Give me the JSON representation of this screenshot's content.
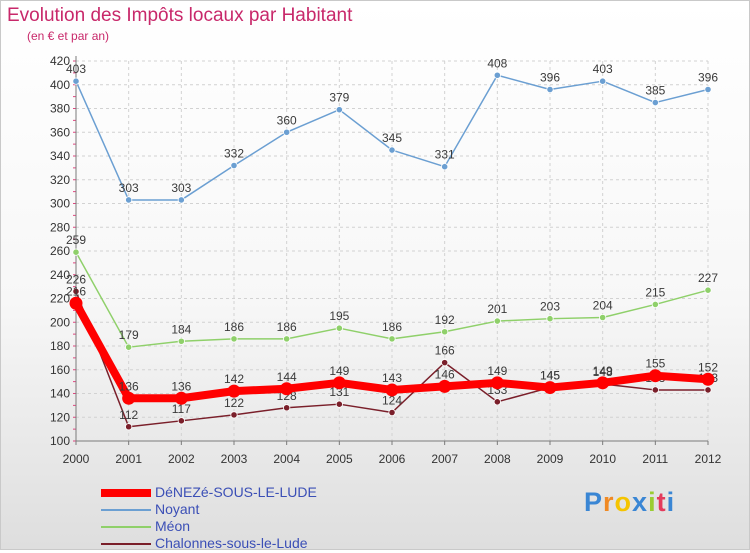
{
  "title": "Evolution des Impôts locaux par Habitant",
  "subtitle": "(en € et par an)",
  "logo_text": "Proxiti",
  "colors": {
    "title": "#c8286a",
    "legend_text": "#3b4fb6",
    "grid": "#d2d2d2",
    "axis": "#7a7a7a"
  },
  "chart_data": {
    "type": "line",
    "title": "Evolution des Impôts locaux par Habitant",
    "subtitle": "(en € et par an)",
    "xlabel": "",
    "ylabel": "",
    "x": [
      "2000",
      "2001",
      "2002",
      "2003",
      "2004",
      "2005",
      "2006",
      "2007",
      "2008",
      "2009",
      "2010",
      "2011",
      "2012"
    ],
    "ylim": [
      100,
      420
    ],
    "yticks": [
      100,
      120,
      140,
      160,
      180,
      200,
      220,
      240,
      260,
      280,
      300,
      320,
      340,
      360,
      380,
      400,
      420
    ],
    "grid": true,
    "legend_position": "bottom-left",
    "series": [
      {
        "name": "Chalonnes-sous-le-Lude",
        "color": "#7a1f2a",
        "values": [
          226,
          112,
          117,
          122,
          128,
          131,
          124,
          166,
          133,
          145,
          148,
          143,
          143
        ]
      },
      {
        "name": "Noyant",
        "color": "#6b9fd2",
        "values": [
          403,
          303,
          303,
          332,
          360,
          379,
          345,
          331,
          408,
          396,
          403,
          385,
          396
        ]
      },
      {
        "name": "Méon",
        "color": "#8fd06a",
        "values": [
          259,
          179,
          184,
          186,
          186,
          195,
          186,
          192,
          201,
          203,
          204,
          215,
          227
        ]
      },
      {
        "name": "DéNEZé-SOUS-LE-LUDE",
        "color": "#ff0000",
        "values": [
          216,
          136,
          136,
          142,
          144,
          149,
          143,
          146,
          149,
          145,
          149,
          155,
          152
        ]
      }
    ],
    "legend": [
      "DéNEZé-SOUS-LE-LUDE",
      "Noyant",
      "Méon",
      "Chalonnes-sous-le-Lude"
    ]
  }
}
